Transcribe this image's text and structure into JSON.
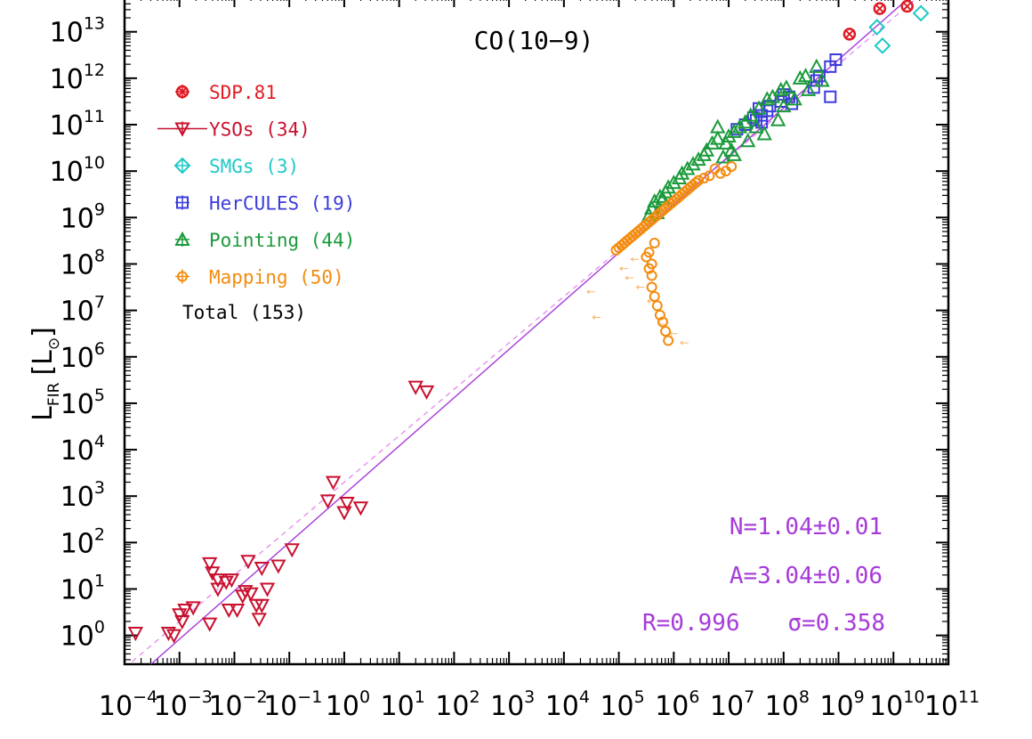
{
  "chart_data": {
    "type": "scatter",
    "title": "CO(10−9)",
    "ylabel": {
      "main": "L",
      "sub": "FIR",
      "unit_open": "[L",
      "unit_sub": "⊙",
      "unit_close": "]"
    },
    "xaxis": {
      "type": "log",
      "range_exp": [
        -4,
        11
      ],
      "tick_exponents": [
        -4,
        -3,
        -2,
        -1,
        0,
        1,
        2,
        3,
        4,
        5,
        6,
        7,
        8,
        9,
        10,
        11
      ]
    },
    "yaxis": {
      "type": "log",
      "visible_range_exp": [
        -0.62,
        13.8
      ],
      "tick_exponents": [
        0,
        1,
        2,
        3,
        4,
        5,
        6,
        7,
        8,
        9,
        10,
        11,
        12,
        13
      ]
    },
    "fit_line": {
      "color": "#a63bd9",
      "x_exp_range": [
        -4,
        11
      ],
      "slope": 1.04,
      "intercept_exp": 3.04
    },
    "fit_line_dashed": {
      "color": "#e88ef0",
      "x_exp_range": [
        -4,
        11
      ],
      "slope": 1.0,
      "intercept_exp": 3.3
    },
    "legend": {
      "position": "top-left",
      "items": [
        {
          "label": "SDP.81",
          "color": "#e01b24",
          "marker": "circle-x"
        },
        {
          "label": "YSOs (34)",
          "color": "#c8102e",
          "marker": "triangle-down"
        },
        {
          "label": "SMGs (3)",
          "color": "#1fc8c8",
          "marker": "diamond"
        },
        {
          "label": "HerCULES (19)",
          "color": "#3b3bdc",
          "marker": "square"
        },
        {
          "label": "Pointing (44)",
          "color": "#1a9a3a",
          "marker": "triangle-up"
        },
        {
          "label": "Mapping (50)",
          "color": "#f28c0f",
          "marker": "circle"
        }
      ],
      "total": "Total (153)"
    },
    "annotations": {
      "N": "N=1.04±0.01",
      "A": "A=3.04±0.06",
      "R": "R=0.996",
      "sigma": "σ=0.358"
    },
    "series": [
      {
        "name": "SDP.81",
        "marker": "circle-x",
        "color": "#e01b24",
        "points": [
          [
            9.2,
            12.95
          ],
          [
            9.75,
            13.5
          ],
          [
            10.25,
            13.55
          ]
        ]
      },
      {
        "name": "YSOs (34)",
        "marker": "triangle-down",
        "color": "#c8102e",
        "points": [
          [
            -3.8,
            0.05
          ],
          [
            -3.2,
            0.05
          ],
          [
            -3.1,
            0.0
          ],
          [
            -3.0,
            0.45
          ],
          [
            -2.95,
            0.3
          ],
          [
            -2.9,
            0.55
          ],
          [
            -2.75,
            0.6
          ],
          [
            -2.45,
            0.25
          ],
          [
            -2.45,
            1.55
          ],
          [
            -2.4,
            1.35
          ],
          [
            -2.3,
            1.2
          ],
          [
            -2.3,
            1.0
          ],
          [
            -2.15,
            1.15
          ],
          [
            -2.1,
            0.55
          ],
          [
            -2.05,
            1.2
          ],
          [
            -1.95,
            0.55
          ],
          [
            -1.85,
            0.85
          ],
          [
            -1.8,
            0.95
          ],
          [
            -1.75,
            1.6
          ],
          [
            -1.7,
            0.9
          ],
          [
            -1.6,
            0.65
          ],
          [
            -1.55,
            0.35
          ],
          [
            -1.5,
            1.45
          ],
          [
            -1.4,
            1.0
          ],
          [
            -1.2,
            1.5
          ],
          [
            -0.95,
            1.85
          ],
          [
            -0.3,
            2.9
          ],
          [
            -0.2,
            3.3
          ],
          [
            0.05,
            2.85
          ],
          [
            0.0,
            2.65
          ],
          [
            0.3,
            2.75
          ],
          [
            1.3,
            5.35
          ],
          [
            1.5,
            5.25
          ],
          [
            -1.5,
            0.65
          ]
        ]
      },
      {
        "name": "SMGs (3)",
        "marker": "diamond",
        "color": "#1fc8c8",
        "points": [
          [
            9.7,
            13.1
          ],
          [
            9.8,
            12.7
          ],
          [
            10.5,
            13.4
          ]
        ]
      },
      {
        "name": "HerCULES (19)",
        "marker": "square",
        "color": "#3b3bdc",
        "points": [
          [
            8.95,
            12.4
          ],
          [
            8.85,
            12.25
          ],
          [
            8.65,
            12.05
          ],
          [
            8.6,
            11.95
          ],
          [
            8.55,
            11.8
          ],
          [
            8.1,
            11.6
          ],
          [
            8.0,
            11.65
          ],
          [
            7.95,
            11.5
          ],
          [
            8.15,
            11.45
          ],
          [
            7.75,
            11.4
          ],
          [
            7.7,
            11.3
          ],
          [
            7.6,
            11.2
          ],
          [
            7.55,
            11.35
          ],
          [
            7.5,
            11.1
          ],
          [
            7.45,
            11.15
          ],
          [
            7.3,
            11.0
          ],
          [
            7.15,
            10.9
          ],
          [
            8.85,
            11.6
          ],
          [
            7.6,
            11.05
          ]
        ]
      },
      {
        "name": "Pointing (44)",
        "marker": "triangle-up",
        "color": "#1a9a3a",
        "points": [
          [
            8.6,
            12.25
          ],
          [
            8.4,
            12.05
          ],
          [
            8.3,
            12.0
          ],
          [
            8.05,
            11.8
          ],
          [
            7.95,
            11.75
          ],
          [
            7.8,
            11.6
          ],
          [
            7.7,
            11.55
          ],
          [
            7.55,
            11.35
          ],
          [
            7.4,
            11.2
          ],
          [
            7.3,
            11.05
          ],
          [
            7.2,
            10.95
          ],
          [
            7.1,
            10.85
          ],
          [
            7.0,
            10.75
          ],
          [
            6.95,
            10.6
          ],
          [
            7.05,
            10.45
          ],
          [
            6.8,
            10.7
          ],
          [
            6.7,
            10.6
          ],
          [
            6.6,
            10.45
          ],
          [
            6.55,
            10.35
          ],
          [
            6.45,
            10.25
          ],
          [
            6.35,
            10.15
          ],
          [
            6.25,
            10.05
          ],
          [
            6.15,
            9.95
          ],
          [
            6.1,
            9.85
          ],
          [
            6.0,
            9.75
          ],
          [
            5.9,
            9.65
          ],
          [
            5.85,
            9.55
          ],
          [
            5.75,
            9.45
          ],
          [
            5.65,
            9.35
          ],
          [
            5.6,
            9.2
          ],
          [
            5.55,
            9.05
          ],
          [
            5.7,
            9.1
          ],
          [
            5.8,
            9.4
          ],
          [
            6.9,
            10.3
          ],
          [
            7.1,
            10.35
          ],
          [
            7.35,
            10.65
          ],
          [
            7.5,
            10.95
          ],
          [
            7.65,
            10.8
          ],
          [
            7.9,
            11.1
          ],
          [
            8.0,
            11.4
          ],
          [
            8.45,
            11.75
          ],
          [
            8.7,
            11.95
          ],
          [
            8.2,
            11.55
          ],
          [
            6.8,
            10.95
          ]
        ]
      },
      {
        "name": "Mapping (50)",
        "marker": "circle",
        "color": "#f28c0f",
        "points": [
          [
            7.05,
            10.1
          ],
          [
            6.95,
            10.0
          ],
          [
            6.85,
            9.95
          ],
          [
            6.75,
            10.05
          ],
          [
            6.65,
            9.9
          ],
          [
            6.55,
            9.85
          ],
          [
            6.45,
            9.8
          ],
          [
            6.4,
            9.75
          ],
          [
            6.35,
            9.7
          ],
          [
            6.3,
            9.65
          ],
          [
            6.25,
            9.6
          ],
          [
            6.2,
            9.55
          ],
          [
            6.15,
            9.5
          ],
          [
            6.1,
            9.45
          ],
          [
            6.05,
            9.4
          ],
          [
            6.0,
            9.35
          ],
          [
            5.95,
            9.3
          ],
          [
            5.9,
            9.25
          ],
          [
            5.85,
            9.2
          ],
          [
            5.8,
            9.15
          ],
          [
            5.75,
            9.1
          ],
          [
            5.7,
            9.05
          ],
          [
            5.65,
            9.0
          ],
          [
            5.6,
            8.95
          ],
          [
            5.55,
            8.9
          ],
          [
            5.5,
            8.85
          ],
          [
            5.45,
            8.8
          ],
          [
            5.4,
            8.75
          ],
          [
            5.35,
            8.7
          ],
          [
            5.3,
            8.65
          ],
          [
            5.25,
            8.6
          ],
          [
            5.2,
            8.55
          ],
          [
            5.15,
            8.5
          ],
          [
            5.1,
            8.45
          ],
          [
            5.05,
            8.4
          ],
          [
            5.0,
            8.35
          ],
          [
            4.95,
            8.3
          ],
          [
            5.6,
            8.0
          ],
          [
            5.55,
            8.25
          ],
          [
            5.65,
            8.45
          ],
          [
            5.5,
            8.15
          ],
          [
            5.55,
            7.9
          ],
          [
            5.6,
            7.75
          ],
          [
            5.6,
            7.5
          ],
          [
            5.65,
            7.3
          ],
          [
            5.7,
            7.1
          ],
          [
            5.75,
            6.9
          ],
          [
            5.8,
            6.75
          ],
          [
            5.85,
            6.55
          ],
          [
            5.9,
            6.35
          ]
        ]
      }
    ],
    "faint_points": [
      [
        4.5,
        7.4
      ],
      [
        4.6,
        6.85
      ],
      [
        5.2,
        7.7
      ],
      [
        5.4,
        7.5
      ],
      [
        5.6,
        7.2
      ],
      [
        5.8,
        6.7
      ],
      [
        6.0,
        6.5
      ],
      [
        6.2,
        6.3
      ],
      [
        5.3,
        8.1
      ],
      [
        5.1,
        7.9
      ]
    ],
    "colors": {
      "axis": "#000000",
      "faint": "#f5b66b"
    }
  }
}
